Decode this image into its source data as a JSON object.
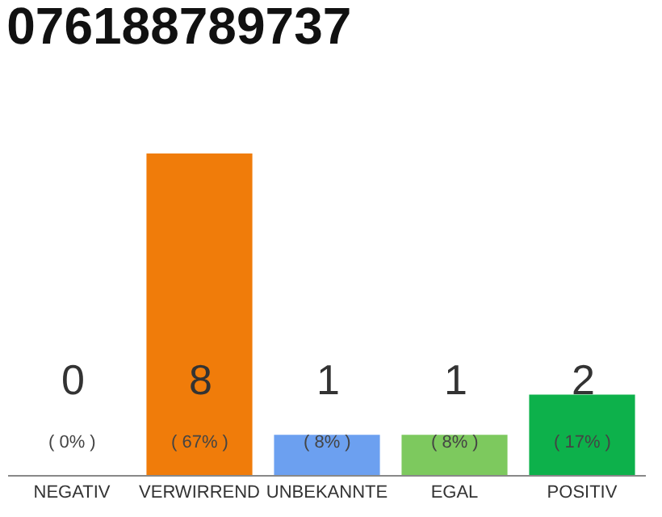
{
  "chart_data": {
    "type": "bar",
    "title": "076188789737",
    "categories": [
      "NEGATIV",
      "VERWIRREND",
      "UNBEKANNTE",
      "EGAL",
      "POSITIV"
    ],
    "values": [
      0,
      8,
      1,
      1,
      2
    ],
    "colors": [
      "#999999",
      "#f07c0a",
      "#6ca0f0",
      "#7dc95e",
      "#0db14b"
    ],
    "ylim": [
      0,
      8
    ],
    "data_labels": true,
    "annotations": [
      "( 0% )",
      "( 67% )",
      "( 8% )",
      "( 8% )",
      "( 17% )"
    ],
    "tick_labels": "x",
    "grid": false
  }
}
